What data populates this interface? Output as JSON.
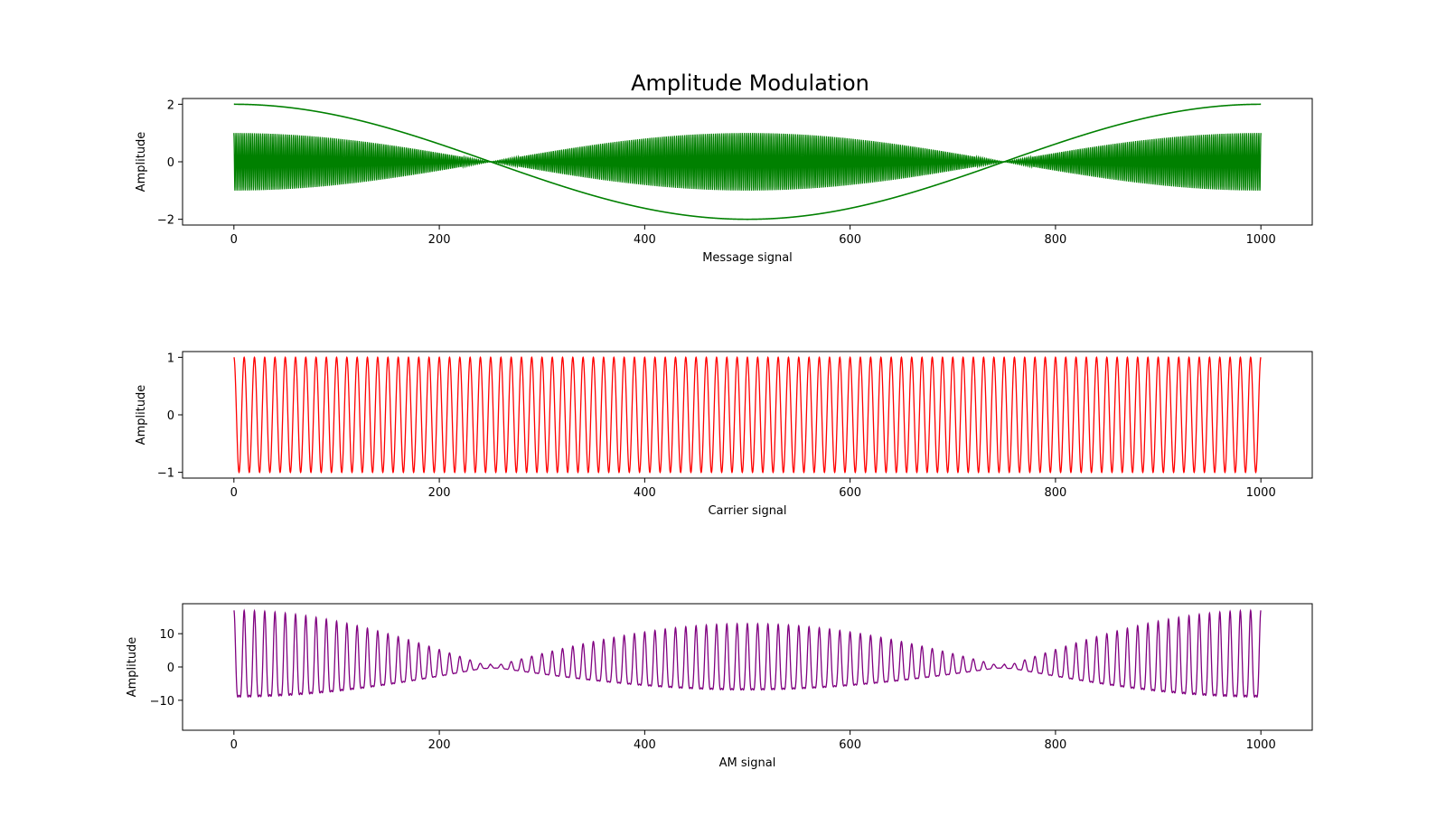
{
  "title": "Amplitude Modulation",
  "chart_data": [
    {
      "type": "line",
      "title": "",
      "xlabel": "Message signal",
      "ylabel": "Amplitude",
      "xlim": [
        -50,
        1050
      ],
      "ylim": [
        -2.2,
        2.2
      ],
      "xticks": [
        0,
        200,
        400,
        600,
        800,
        1000
      ],
      "yticks": [
        -2,
        0,
        2
      ],
      "ytick_labels": [
        "−2",
        "0",
        "2"
      ],
      "grid": false,
      "color": "#008000",
      "series": [
        {
          "kind": "cosine",
          "amplitude": 2,
          "cycles_over_x_range": 1,
          "x": [
            0,
            1000
          ]
        },
        {
          "kind": "modulated-carrier",
          "carrier_amplitude": 1,
          "envelope": "cos",
          "carrier_cycles": 500,
          "x": [
            0,
            1000
          ]
        }
      ]
    },
    {
      "type": "line",
      "title": "",
      "xlabel": "Carrier signal",
      "ylabel": "Amplitude",
      "xlim": [
        -50,
        1050
      ],
      "ylim": [
        -1.1,
        1.1
      ],
      "xticks": [
        0,
        200,
        400,
        600,
        800,
        1000
      ],
      "yticks": [
        -1,
        0,
        1
      ],
      "ytick_labels": [
        "−1",
        "0",
        "1"
      ],
      "grid": false,
      "color": "#ff0000",
      "series": [
        {
          "kind": "carrier",
          "amplitude": 1,
          "cycles": 100,
          "x": [
            0,
            1000
          ]
        }
      ]
    },
    {
      "type": "line",
      "title": "",
      "xlabel": "AM signal",
      "ylabel": "Amplitude",
      "xlim": [
        -50,
        1050
      ],
      "ylim": [
        -19,
        19
      ],
      "xticks": [
        0,
        200,
        400,
        600,
        800,
        1000
      ],
      "yticks": [
        -10,
        0,
        10
      ],
      "ytick_labels": [
        "−10",
        "0",
        "10"
      ],
      "grid": false,
      "color": "#800080",
      "series": [
        {
          "kind": "am",
          "peak_amplitude": 17,
          "envelope_nulls": [
            250,
            750
          ],
          "envelope_peak_mid": 13,
          "carrier_cycles": 100,
          "x": [
            0,
            1000
          ]
        }
      ]
    }
  ]
}
